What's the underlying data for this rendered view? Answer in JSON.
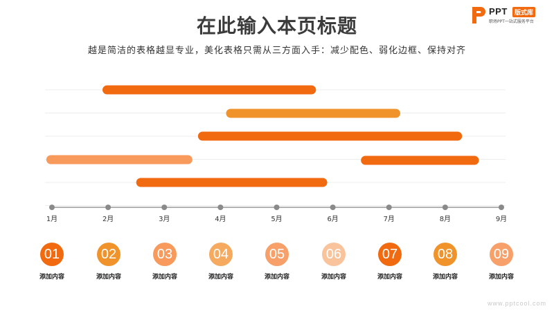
{
  "header": {
    "title": "在此输入本页标题",
    "subtitle": "越是简洁的表格越显专业，美化表格只需从三方面入手：减少配色、弱化边框、保持对齐"
  },
  "logo": {
    "name": "PPT",
    "badge": "版式库",
    "tagline": "职场PPT一站式服务平台",
    "icon": "ppt-logo-icon"
  },
  "watermark": "www.pptcool.com",
  "chart_data": {
    "type": "gantt",
    "x_ticks": [
      "1月",
      "2月",
      "3月",
      "4月",
      "5月",
      "6月",
      "7月",
      "8月",
      "9月"
    ],
    "xlim": [
      1,
      9
    ],
    "bars": [
      {
        "start": 1.9,
        "end": 5.7,
        "color": "#f26a10"
      },
      {
        "start": 4.1,
        "end": 7.2,
        "color": "#f0932b"
      },
      {
        "start": 3.6,
        "end": 8.3,
        "color": "#f26a10"
      },
      {
        "start": 0.9,
        "end": 3.5,
        "color": "#f79a5c"
      },
      {
        "start": 6.5,
        "end": 8.6,
        "color": "#f26a10"
      },
      {
        "start": 2.5,
        "end": 5.9,
        "color": "#f26a10"
      }
    ],
    "grid": true
  },
  "items": [
    {
      "number": "01",
      "label": "添加内容",
      "color": "#f26a10"
    },
    {
      "number": "02",
      "label": "添加内容",
      "color": "#f0932b"
    },
    {
      "number": "03",
      "label": "添加内容",
      "color": "#f79a5c"
    },
    {
      "number": "04",
      "label": "添加内容",
      "color": "#f5aa60"
    },
    {
      "number": "05",
      "label": "添加内容",
      "color": "#f7a06a"
    },
    {
      "number": "06",
      "label": "添加内容",
      "color": "#f9c39c"
    },
    {
      "number": "07",
      "label": "添加内容",
      "color": "#f26a10"
    },
    {
      "number": "08",
      "label": "添加内容",
      "color": "#f0932b"
    },
    {
      "number": "09",
      "label": "添加内容",
      "color": "#f7a06a"
    }
  ]
}
